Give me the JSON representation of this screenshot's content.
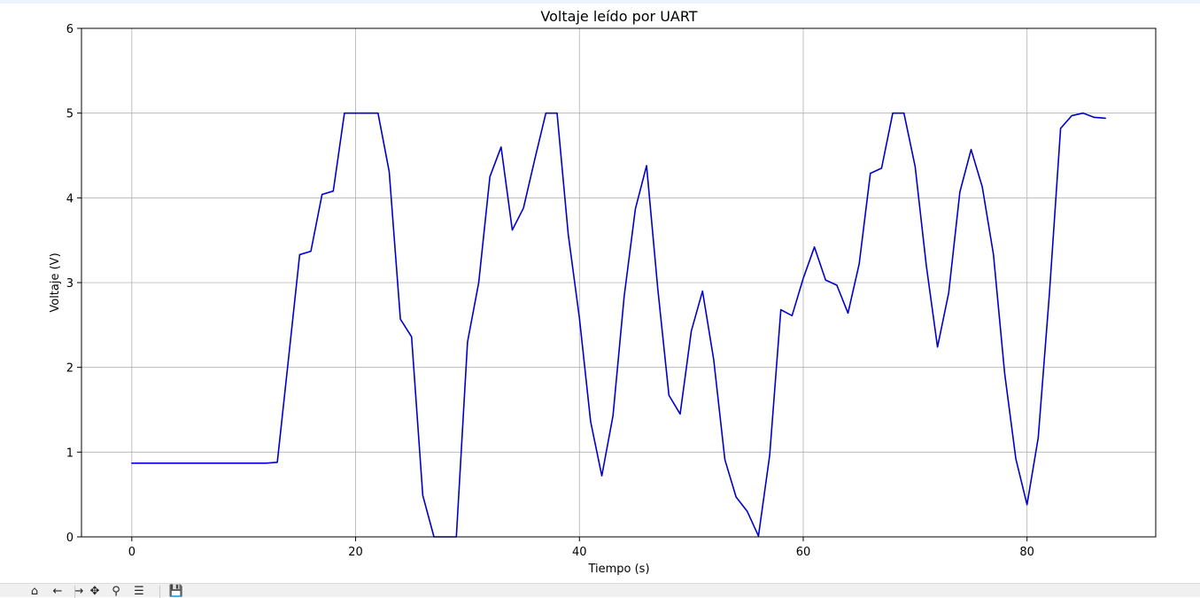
{
  "chart_data": {
    "type": "line",
    "title": "Voltaje leído por UART",
    "xlabel": "Tiempo (s)",
    "ylabel": "Voltaje (V)",
    "xlim": [
      -4.5,
      91.5
    ],
    "ylim": [
      0,
      6
    ],
    "xticks": [
      0,
      20,
      40,
      60,
      80
    ],
    "yticks": [
      0,
      1,
      2,
      3,
      4,
      5,
      6
    ],
    "grid": true,
    "line_color": "#0000cc",
    "series": [
      {
        "x": [
          0,
          1,
          2,
          3,
          4,
          5,
          6,
          7,
          8,
          9,
          10,
          11,
          12,
          13,
          14,
          15,
          16,
          17,
          18,
          19,
          20,
          21,
          22,
          23,
          24,
          25,
          26,
          27,
          28,
          29,
          30,
          31,
          32,
          33,
          34,
          35,
          36,
          37,
          38,
          39,
          40,
          41,
          42,
          43,
          44,
          45,
          46,
          47,
          48,
          49,
          50,
          51,
          52,
          53,
          54,
          55,
          56,
          57,
          58,
          59,
          60,
          61,
          62,
          63,
          64,
          65,
          66,
          67,
          68,
          69,
          70,
          71,
          72,
          73,
          74,
          75,
          76,
          77,
          78,
          79,
          80,
          81,
          82,
          83,
          84,
          85,
          86,
          87
        ],
        "y": [
          0.87,
          0.87,
          0.87,
          0.87,
          0.87,
          0.87,
          0.87,
          0.87,
          0.87,
          0.87,
          0.87,
          0.87,
          0.87,
          0.88,
          2.1,
          3.33,
          3.37,
          4.04,
          4.08,
          5.0,
          5.0,
          5.0,
          5.0,
          4.31,
          2.57,
          2.36,
          0.49,
          0.0,
          0.0,
          0.0,
          2.3,
          3.0,
          4.25,
          4.6,
          3.62,
          3.88,
          4.45,
          5.0,
          5.0,
          3.57,
          2.58,
          1.36,
          0.72,
          1.43,
          2.84,
          3.87,
          4.38,
          2.93,
          1.67,
          1.45,
          2.43,
          2.9,
          2.09,
          0.91,
          0.47,
          0.3,
          0.01,
          0.96,
          2.68,
          2.61,
          3.05,
          3.42,
          3.03,
          2.97,
          2.64,
          3.22,
          4.29,
          4.35,
          5.0,
          5.0,
          4.37,
          3.2,
          2.24,
          2.88,
          4.07,
          4.57,
          4.13,
          3.33,
          1.93,
          0.92,
          0.38,
          1.17,
          2.87,
          4.82,
          4.97,
          5.0,
          4.95,
          4.94
        ]
      }
    ]
  },
  "toolbar": {
    "icons": [
      "home-icon",
      "back-icon",
      "forward-icon",
      "pan-icon",
      "zoom-icon",
      "configure-icon",
      "save-icon"
    ],
    "glyphs": [
      "⌂",
      "←",
      "→",
      "✥",
      "⚲",
      "☰",
      "💾"
    ]
  }
}
